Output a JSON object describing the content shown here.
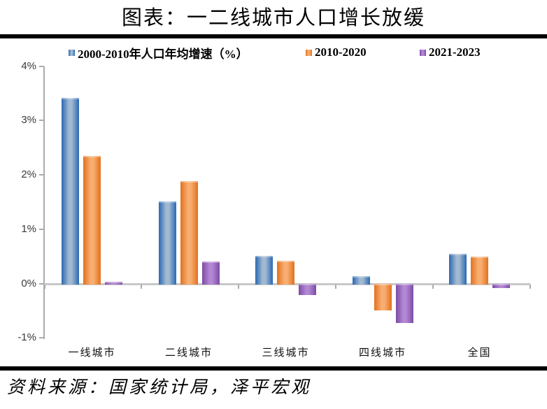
{
  "title": "图表：一二线城市人口增长放缓",
  "source": "资料来源：国家统计局，泽平宏观",
  "chart_data": {
    "type": "bar",
    "title": "图表：一二线城市人口增长放缓",
    "xlabel": "",
    "ylabel": "",
    "grid": false,
    "legend_position": "top",
    "ylim": [
      -1,
      4
    ],
    "y_ticks": [
      "4%",
      "3%",
      "2%",
      "1%",
      "0%",
      "-1%"
    ],
    "y_tick_values": [
      4,
      3,
      2,
      1,
      0,
      -1
    ],
    "categories": [
      "一线城市",
      "二线城市",
      "三线城市",
      "四线城市",
      "全国"
    ],
    "series": [
      {
        "name": "2000-2010年人口年均增速（%）",
        "color_edge": "#2a68b2",
        "color_light": "#a2b9d2",
        "values": [
          3.43,
          1.53,
          0.53,
          0.15,
          0.57
        ]
      },
      {
        "name": "2010-2020",
        "color_edge": "#e2711d",
        "color_light": "#f8ae71",
        "values": [
          2.37,
          1.91,
          0.44,
          -0.49,
          0.52
        ]
      },
      {
        "name": "2021-2023",
        "color_edge": "#7c4ba3",
        "color_light": "#b287d4",
        "values": [
          0.05,
          0.42,
          -0.21,
          -0.72,
          -0.08
        ]
      }
    ]
  }
}
